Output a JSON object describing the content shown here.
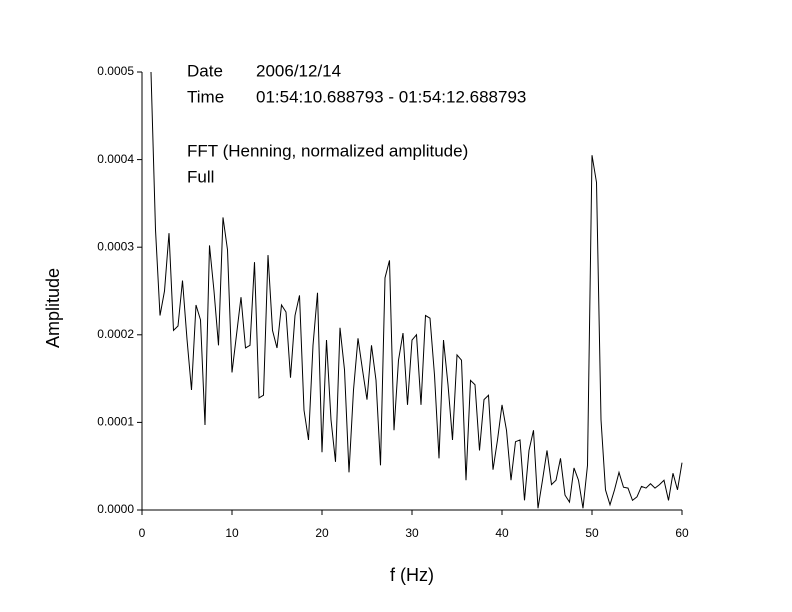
{
  "chart_data": {
    "type": "line",
    "xlabel": "f (Hz)",
    "ylabel": "Amplitude",
    "annotations": [
      "Date",
      "2006/12/14",
      "Time",
      "01:54:10.688793 - 01:54:12.688793",
      "FFT (Henning, normalized amplitude)",
      "Full"
    ],
    "color": "#000000",
    "xlim": [
      0,
      60
    ],
    "xticks": [
      0,
      10,
      20,
      30,
      40,
      50,
      60
    ],
    "ylim": [
      0,
      0.0005
    ],
    "yticks": [
      {
        "value": 0,
        "label": "0.0000"
      },
      0.0001,
      0.0002,
      0.0003,
      0.0004,
      0.0005
    ],
    "grid": false,
    "x": [
      1,
      1.5,
      2,
      2.5,
      3,
      3.5,
      4,
      4.5,
      5,
      5.5,
      6,
      6.5,
      7,
      7.5,
      8,
      8.5,
      9,
      9.5,
      10,
      10.5,
      11,
      11.5,
      12,
      12.5,
      13,
      13.5,
      14,
      14.5,
      15,
      15.5,
      16,
      16.5,
      17,
      17.5,
      18,
      18.5,
      19,
      19.5,
      20,
      20.5,
      21,
      21.5,
      22,
      22.5,
      23,
      23.5,
      24,
      24.5,
      25,
      25.5,
      26,
      26.5,
      27,
      27.5,
      28,
      28.5,
      29,
      29.5,
      30,
      30.5,
      31,
      31.5,
      32,
      32.5,
      33,
      33.5,
      34,
      34.5,
      35,
      35.5,
      36,
      36.5,
      37,
      37.5,
      38,
      38.5,
      39,
      39.5,
      40,
      40.5,
      41,
      41.5,
      42,
      42.5,
      43,
      43.5,
      44,
      44.5,
      45,
      45.5,
      46,
      46.5,
      47,
      47.5,
      48,
      48.5,
      49,
      49.5,
      50,
      50.5,
      51,
      51.5,
      52,
      52.5,
      53,
      53.5,
      54,
      54.5,
      55,
      55.5,
      56,
      56.5,
      57,
      57.5,
      58,
      58.5,
      59,
      59.5,
      60
    ],
    "values": [
      0.0005,
      0.00032,
      0.000222,
      0.00025,
      0.000316,
      0.000205,
      0.00021,
      0.000262,
      0.000195,
      0.000137,
      0.000234,
      0.000217,
      9.7e-05,
      0.000302,
      0.00025,
      0.000188,
      0.000334,
      0.000297,
      0.000157,
      0.0002,
      0.000243,
      0.000185,
      0.000188,
      0.000283,
      0.000128,
      0.000131,
      0.000291,
      0.000205,
      0.000185,
      0.000234,
      0.000226,
      0.000151,
      0.000222,
      0.000245,
      0.000114,
      8e-05,
      0.000188,
      0.000248,
      6.6e-05,
      0.000194,
      0.000103,
      5.5e-05,
      0.000208,
      0.00016,
      4.3e-05,
      0.000137,
      0.000196,
      0.00016,
      0.000126,
      0.000188,
      0.000148,
      5.1e-05,
      0.000265,
      0.000285,
      9.1e-05,
      0.000171,
      0.000202,
      0.00012,
      0.000194,
      0.0002,
      0.00012,
      0.000222,
      0.000219,
      0.000154,
      5.9e-05,
      0.000194,
      0.000143,
      8e-05,
      0.000177,
      0.000171,
      3.4e-05,
      0.000148,
      0.000143,
      6.8e-05,
      0.000126,
      0.000131,
      4.6e-05,
      8e-05,
      0.00012,
      9.1e-05,
      3.4e-05,
      7.8e-05,
      8e-05,
      1.1e-05,
      6.8e-05,
      9.1e-05,
      2e-06,
      3.4e-05,
      6.8e-05,
      2.9e-05,
      3.4e-05,
      5.9e-05,
      1.7e-05,
      9e-06,
      4.8e-05,
      3.4e-05,
      2e-06,
      5.1e-05,
      0.000405,
      0.000374,
      0.000103,
      2.3e-05,
      6e-06,
      2.3e-05,
      4.3e-05,
      2.6e-05,
      2.5e-05,
      1.1e-05,
      1.5e-05,
      2.7e-05,
      2.5e-05,
      3e-05,
      2.5e-05,
      2.9e-05,
      3.4e-05,
      1.1e-05,
      4.2e-05,
      2.3e-05,
      5.4e-05
    ]
  }
}
